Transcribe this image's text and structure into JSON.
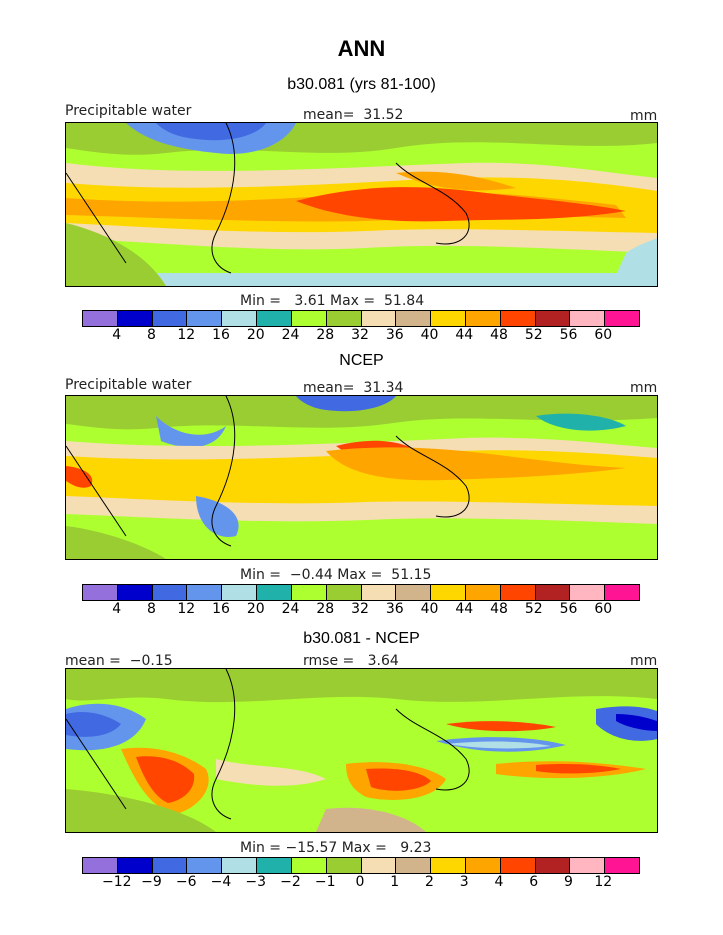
{
  "title": "ANN",
  "colors": [
    "#9370DB",
    "#0000CD",
    "#4169E1",
    "#6495ED",
    "#B0E0E6",
    "#20B2AA",
    "#ADFF2F",
    "#9ACD32",
    "#F5DEB3",
    "#D2B48C",
    "#FFD700",
    "#FFA500",
    "#FF4500",
    "#B22222",
    "#FFB6C1",
    "#FF1493"
  ],
  "panels": [
    {
      "title": "b30.081 (yrs 81-100)",
      "left_label": "Precipitable water",
      "center_label": "mean=  31.52",
      "right_label": "mm",
      "minmax": "Min =   3.61 Max =  51.84",
      "ticks": [
        "4",
        "8",
        "12",
        "16",
        "20",
        "24",
        "28",
        "32",
        "36",
        "40",
        "44",
        "48",
        "52",
        "56",
        "60"
      ]
    },
    {
      "title": "NCEP",
      "left_label": "Precipitable water",
      "center_label": "mean=  31.34",
      "right_label": "mm",
      "minmax": "Min =  −0.44 Max =  51.15",
      "ticks": [
        "4",
        "8",
        "12",
        "16",
        "20",
        "24",
        "28",
        "32",
        "36",
        "40",
        "44",
        "48",
        "52",
        "56",
        "60"
      ]
    },
    {
      "title": "b30.081 - NCEP",
      "left_label": "mean =  −0.15",
      "center_label": "rmse =   3.64",
      "right_label": "mm",
      "minmax": "Min = −15.57 Max =   9.23",
      "ticks": [
        "−12",
        "−9",
        "−6",
        "−4",
        "−3",
        "−2",
        "−1",
        "0",
        "1",
        "2",
        "3",
        "4",
        "6",
        "9",
        "12"
      ]
    }
  ]
}
